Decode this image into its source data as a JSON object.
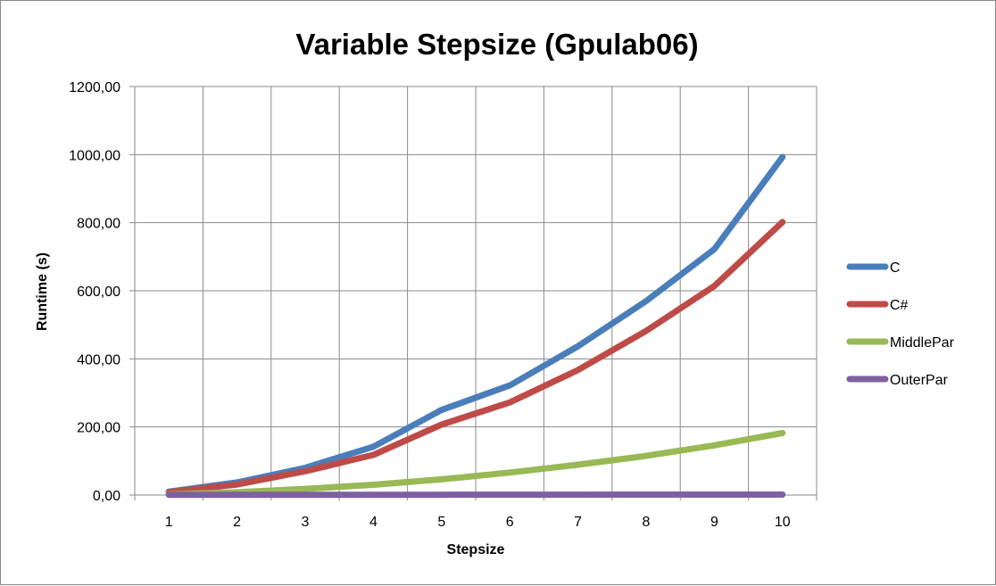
{
  "chart_data": {
    "type": "line",
    "title": "Variable Stepsize (Gpulab06)",
    "xlabel": "Stepsize",
    "ylabel": "Runtime (s)",
    "categories": [
      "1",
      "2",
      "3",
      "4",
      "5",
      "6",
      "7",
      "8",
      "9",
      "10"
    ],
    "ylim": [
      0,
      1200
    ],
    "yticks": [
      "0,00",
      "200,00",
      "400,00",
      "600,00",
      "800,00",
      "1000,00",
      "1200,00"
    ],
    "grid": true,
    "legend_position": "right",
    "series": [
      {
        "name": "C",
        "color": "#4a7ebb",
        "values": [
          10,
          37,
          80,
          142,
          250,
          322,
          437,
          570,
          722,
          993
        ]
      },
      {
        "name": "C#",
        "color": "#be4b48",
        "values": [
          8,
          31,
          70,
          118,
          207,
          272,
          367,
          482,
          614,
          802
        ]
      },
      {
        "name": "MiddlePar",
        "color": "#98b954",
        "values": [
          2,
          8,
          18,
          30,
          46,
          66,
          89,
          115,
          146,
          182
        ]
      },
      {
        "name": "OuterPar",
        "color": "#7d60a0",
        "values": [
          0.5,
          0.6,
          0.7,
          0.8,
          0.9,
          1.0,
          1.1,
          1.2,
          1.3,
          1.4
        ]
      }
    ]
  }
}
